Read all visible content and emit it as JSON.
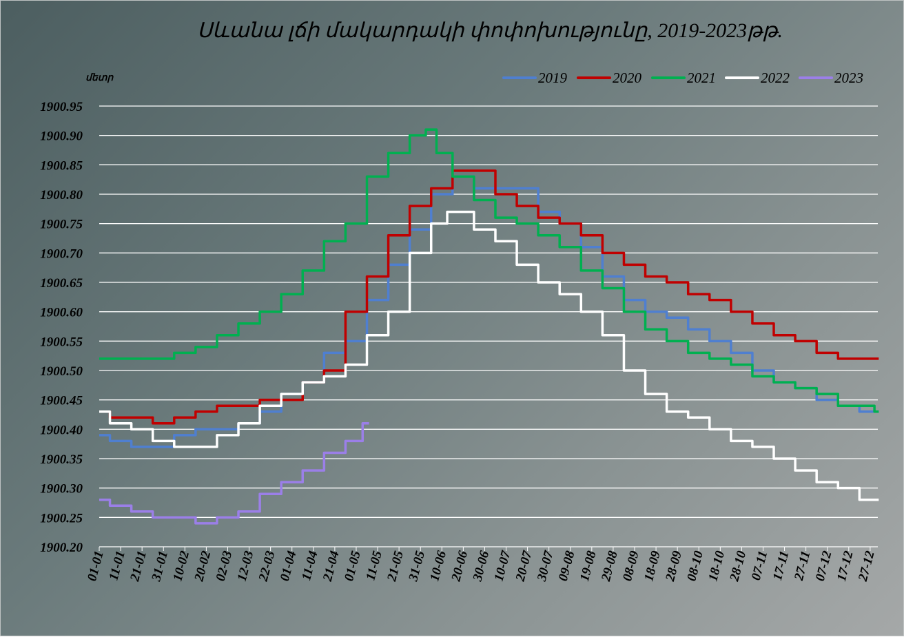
{
  "chart_data": {
    "type": "line",
    "title": "Սևանա լճի մակարդակի փոփոխությունը, 2019-2023թթ.",
    "ylabel": "մետր",
    "xlabel": "",
    "ylim": [
      1900.2,
      1900.95
    ],
    "yticks": [
      "1900.95",
      "1900.90",
      "1900.85",
      "1900.80",
      "1900.75",
      "1900.70",
      "1900.65",
      "1900.60",
      "1900.55",
      "1900.50",
      "1900.45",
      "1900.40",
      "1900.35",
      "1900.30",
      "1900.25",
      "1900.20"
    ],
    "xticks": [
      "01-01",
      "11-01",
      "21-01",
      "31-01",
      "10-02",
      "20-02",
      "02-03",
      "12-03",
      "22-03",
      "01-04",
      "11-04",
      "21-04",
      "01-05",
      "11-05",
      "21-05",
      "31-05",
      "10-06",
      "20-06",
      "30-06",
      "10-07",
      "20-07",
      "30-07",
      "09-08",
      "19-08",
      "29-08",
      "08-09",
      "18-09",
      "28-09",
      "08-10",
      "18-10",
      "28-10",
      "07-11",
      "17-11",
      "27-11",
      "07-12",
      "17-12",
      "27-12"
    ],
    "x_unit": "day of year (0 = 01-01)",
    "grid": true,
    "legend_position": "top-right",
    "series": [
      {
        "name": "2019",
        "color": "#4f7fd0",
        "x": [
          0,
          10,
          20,
          30,
          40,
          50,
          60,
          70,
          80,
          90,
          100,
          110,
          120,
          130,
          140,
          150,
          160,
          170,
          180,
          190,
          200,
          210,
          220,
          230,
          240,
          250,
          260,
          270,
          280,
          290,
          300,
          310,
          320,
          330,
          340,
          350,
          360,
          364
        ],
        "values": [
          1900.39,
          1900.38,
          1900.37,
          1900.37,
          1900.39,
          1900.4,
          1900.4,
          1900.41,
          1900.43,
          1900.46,
          1900.48,
          1900.53,
          1900.55,
          1900.62,
          1900.68,
          1900.74,
          1900.8,
          1900.83,
          1900.81,
          1900.81,
          1900.81,
          1900.77,
          1900.75,
          1900.71,
          1900.66,
          1900.62,
          1900.6,
          1900.59,
          1900.57,
          1900.55,
          1900.53,
          1900.5,
          1900.48,
          1900.47,
          1900.45,
          1900.44,
          1900.43,
          1900.43
        ]
      },
      {
        "name": "2020",
        "color": "#c00000",
        "x": [
          0,
          10,
          20,
          30,
          40,
          50,
          60,
          70,
          80,
          90,
          100,
          110,
          120,
          130,
          140,
          150,
          160,
          170,
          180,
          190,
          200,
          210,
          220,
          230,
          240,
          250,
          260,
          270,
          280,
          290,
          300,
          310,
          320,
          330,
          340,
          350,
          360,
          364
        ],
        "values": [
          1900.43,
          1900.42,
          1900.42,
          1900.41,
          1900.42,
          1900.43,
          1900.44,
          1900.44,
          1900.45,
          1900.45,
          1900.48,
          1900.5,
          1900.6,
          1900.66,
          1900.73,
          1900.78,
          1900.81,
          1900.84,
          1900.84,
          1900.8,
          1900.78,
          1900.76,
          1900.75,
          1900.73,
          1900.7,
          1900.68,
          1900.66,
          1900.65,
          1900.63,
          1900.62,
          1900.6,
          1900.58,
          1900.56,
          1900.55,
          1900.53,
          1900.52,
          1900.52,
          1900.52
        ]
      },
      {
        "name": "2021",
        "color": "#00b050",
        "x": [
          0,
          10,
          20,
          30,
          40,
          50,
          60,
          70,
          80,
          90,
          100,
          110,
          120,
          130,
          140,
          150,
          155,
          160,
          170,
          180,
          190,
          200,
          210,
          220,
          230,
          240,
          250,
          260,
          270,
          280,
          290,
          300,
          310,
          320,
          330,
          340,
          350,
          360,
          364
        ],
        "values": [
          1900.52,
          1900.52,
          1900.52,
          1900.52,
          1900.53,
          1900.54,
          1900.56,
          1900.58,
          1900.6,
          1900.63,
          1900.67,
          1900.72,
          1900.75,
          1900.83,
          1900.87,
          1900.9,
          1900.91,
          1900.87,
          1900.83,
          1900.79,
          1900.76,
          1900.75,
          1900.73,
          1900.71,
          1900.67,
          1900.64,
          1900.6,
          1900.57,
          1900.55,
          1900.53,
          1900.52,
          1900.51,
          1900.49,
          1900.48,
          1900.47,
          1900.46,
          1900.44,
          1900.44,
          1900.43
        ]
      },
      {
        "name": "2022",
        "color": "#ffffff",
        "x": [
          0,
          10,
          20,
          30,
          40,
          50,
          60,
          70,
          80,
          90,
          100,
          110,
          120,
          130,
          140,
          150,
          160,
          165,
          170,
          180,
          190,
          200,
          210,
          220,
          230,
          240,
          250,
          260,
          270,
          280,
          290,
          300,
          310,
          320,
          330,
          340,
          350,
          360,
          364
        ],
        "values": [
          1900.43,
          1900.41,
          1900.4,
          1900.38,
          1900.37,
          1900.37,
          1900.39,
          1900.41,
          1900.44,
          1900.46,
          1900.48,
          1900.49,
          1900.51,
          1900.56,
          1900.6,
          1900.7,
          1900.75,
          1900.77,
          1900.77,
          1900.74,
          1900.72,
          1900.68,
          1900.65,
          1900.63,
          1900.6,
          1900.56,
          1900.5,
          1900.46,
          1900.43,
          1900.42,
          1900.4,
          1900.38,
          1900.37,
          1900.35,
          1900.33,
          1900.31,
          1900.3,
          1900.28,
          1900.28
        ]
      },
      {
        "name": "2023",
        "color": "#9b7fe8",
        "x": [
          0,
          10,
          20,
          30,
          40,
          50,
          60,
          70,
          80,
          90,
          100,
          110,
          120,
          126
        ],
        "values": [
          1900.28,
          1900.27,
          1900.26,
          1900.25,
          1900.25,
          1900.24,
          1900.25,
          1900.26,
          1900.29,
          1900.31,
          1900.33,
          1900.36,
          1900.38,
          1900.41
        ]
      }
    ]
  }
}
